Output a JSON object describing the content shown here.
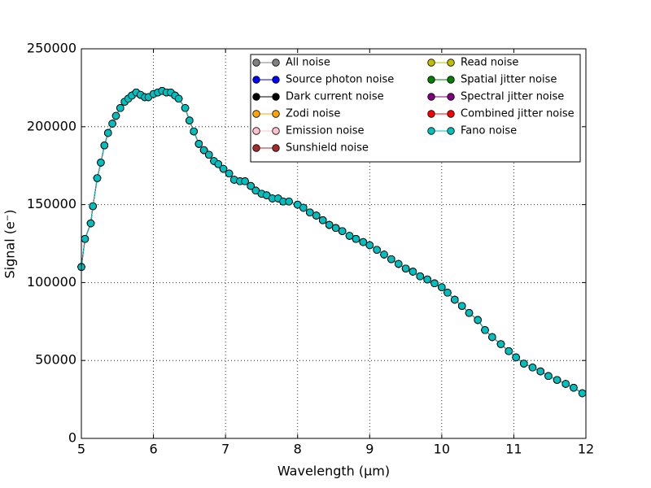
{
  "chart_data": {
    "type": "line",
    "xlabel": "Wavelength (μm)",
    "ylabel": "Signal (e⁻)",
    "xlim": [
      5,
      12
    ],
    "xticks": [
      5,
      6,
      7,
      8,
      9,
      10,
      11,
      12
    ],
    "ylim": [
      0,
      250000
    ],
    "yticks": [
      0,
      50000,
      100000,
      150000,
      200000,
      250000
    ],
    "grid": true,
    "legend": "upper right",
    "legend_columns": 2,
    "x": [
      5.0,
      5.05,
      5.13,
      5.16,
      5.22,
      5.27,
      5.32,
      5.37,
      5.43,
      5.48,
      5.54,
      5.6,
      5.65,
      5.7,
      5.76,
      5.82,
      5.88,
      5.93,
      6.0,
      6.06,
      6.12,
      6.18,
      6.24,
      6.3,
      6.35,
      6.44,
      6.5,
      6.56,
      6.63,
      6.7,
      6.77,
      6.84,
      6.9,
      6.97,
      7.05,
      7.12,
      7.2,
      7.27,
      7.35,
      7.42,
      7.5,
      7.57,
      7.65,
      7.73,
      7.8,
      7.88,
      8.0,
      8.08,
      8.17,
      8.26,
      8.35,
      8.44,
      8.53,
      8.62,
      8.72,
      8.81,
      8.91,
      9.0,
      9.1,
      9.2,
      9.3,
      9.4,
      9.5,
      9.6,
      9.7,
      9.8,
      9.9,
      10.0,
      10.08,
      10.18,
      10.28,
      10.38,
      10.5,
      10.6,
      10.7,
      10.82,
      10.93,
      11.03,
      11.14,
      11.26,
      11.37,
      11.48,
      11.6,
      11.72,
      11.83,
      11.95
    ],
    "series": [
      {
        "name": "All noise",
        "color": "#808080",
        "values": [
          110000,
          128000,
          138000,
          149000,
          167000,
          177000,
          188000,
          196000,
          202000,
          207000,
          212000,
          216000,
          218000,
          220000,
          222000,
          220500,
          219000,
          219000,
          221000,
          222000,
          223000,
          222000,
          222000,
          220000,
          218000,
          212000,
          204000,
          197000,
          189000,
          185000,
          182000,
          178000,
          176000,
          173000,
          170000,
          166000,
          165000,
          165000,
          162000,
          159000,
          157000,
          156000,
          154000,
          154000,
          152000,
          152000,
          150000,
          148000,
          145000,
          143000,
          140000,
          137000,
          135000,
          133000,
          130000,
          128000,
          126000,
          124000,
          121000,
          118000,
          115000,
          112000,
          109000,
          107000,
          104000,
          102000,
          99500,
          97000,
          93500,
          89000,
          85000,
          80500,
          76000,
          69500,
          65000,
          60500,
          56000,
          52000,
          48000,
          45500,
          43000,
          40000,
          37500,
          35000,
          32500,
          29000
        ]
      },
      {
        "name": "Source photon noise",
        "color": "#0000ff",
        "values": [
          110000,
          128000,
          138000,
          149000,
          167000,
          177000,
          188000,
          196000,
          202000,
          207000,
          212000,
          216000,
          218000,
          220000,
          222000,
          220500,
          219000,
          219000,
          221000,
          222000,
          223000,
          222000,
          222000,
          220000,
          218000,
          212000,
          204000,
          197000,
          189000,
          185000,
          182000,
          178000,
          176000,
          173000,
          170000,
          166000,
          165000,
          165000,
          162000,
          159000,
          157000,
          156000,
          154000,
          154000,
          152000,
          152000,
          150000,
          148000,
          145000,
          143000,
          140000,
          137000,
          135000,
          133000,
          130000,
          128000,
          126000,
          124000,
          121000,
          118000,
          115000,
          112000,
          109000,
          107000,
          104000,
          102000,
          99500,
          97000,
          93500,
          89000,
          85000,
          80500,
          76000,
          69500,
          65000,
          60500,
          56000,
          52000,
          48000,
          45500,
          43000,
          40000,
          37500,
          35000,
          32500,
          29000
        ]
      },
      {
        "name": "Dark current noise",
        "color": "#000000",
        "values": [
          110000,
          128000,
          138000,
          149000,
          167000,
          177000,
          188000,
          196000,
          202000,
          207000,
          212000,
          216000,
          218000,
          220000,
          222000,
          220500,
          219000,
          219000,
          221000,
          222000,
          223000,
          222000,
          222000,
          220000,
          218000,
          212000,
          204000,
          197000,
          189000,
          185000,
          182000,
          178000,
          176000,
          173000,
          170000,
          166000,
          165000,
          165000,
          162000,
          159000,
          157000,
          156000,
          154000,
          154000,
          152000,
          152000,
          150000,
          148000,
          145000,
          143000,
          140000,
          137000,
          135000,
          133000,
          130000,
          128000,
          126000,
          124000,
          121000,
          118000,
          115000,
          112000,
          109000,
          107000,
          104000,
          102000,
          99500,
          97000,
          93500,
          89000,
          85000,
          80500,
          76000,
          69500,
          65000,
          60500,
          56000,
          52000,
          48000,
          45500,
          43000,
          40000,
          37500,
          35000,
          32500,
          29000
        ]
      },
      {
        "name": "Zodi noise",
        "color": "#ffa500",
        "values": [
          110000,
          128000,
          138000,
          149000,
          167000,
          177000,
          188000,
          196000,
          202000,
          207000,
          212000,
          216000,
          218000,
          220000,
          222000,
          220500,
          219000,
          219000,
          221000,
          222000,
          223000,
          222000,
          222000,
          220000,
          218000,
          212000,
          204000,
          197000,
          189000,
          185000,
          182000,
          178000,
          176000,
          173000,
          170000,
          166000,
          165000,
          165000,
          162000,
          159000,
          157000,
          156000,
          154000,
          154000,
          152000,
          152000,
          150000,
          148000,
          145000,
          143000,
          140000,
          137000,
          135000,
          133000,
          130000,
          128000,
          126000,
          124000,
          121000,
          118000,
          115000,
          112000,
          109000,
          107000,
          104000,
          102000,
          99500,
          97000,
          93500,
          89000,
          85000,
          80500,
          76000,
          69500,
          65000,
          60500,
          56000,
          52000,
          48000,
          45500,
          43000,
          40000,
          37500,
          35000,
          32500,
          29000
        ]
      },
      {
        "name": "Emission noise",
        "color": "#ffc0cb",
        "values": [
          110000,
          128000,
          138000,
          149000,
          167000,
          177000,
          188000,
          196000,
          202000,
          207000,
          212000,
          216000,
          218000,
          220000,
          222000,
          220500,
          219000,
          219000,
          221000,
          222000,
          223000,
          222000,
          222000,
          220000,
          218000,
          212000,
          204000,
          197000,
          189000,
          185000,
          182000,
          178000,
          176000,
          173000,
          170000,
          166000,
          165000,
          165000,
          162000,
          159000,
          157000,
          156000,
          154000,
          154000,
          152000,
          152000,
          150000,
          148000,
          145000,
          143000,
          140000,
          137000,
          135000,
          133000,
          130000,
          128000,
          126000,
          124000,
          121000,
          118000,
          115000,
          112000,
          109000,
          107000,
          104000,
          102000,
          99500,
          97000,
          93500,
          89000,
          85000,
          80500,
          76000,
          69500,
          65000,
          60500,
          56000,
          52000,
          48000,
          45500,
          43000,
          40000,
          37500,
          35000,
          32500,
          29000
        ]
      },
      {
        "name": "Sunshield noise",
        "color": "#a52a2a",
        "values": [
          110000,
          128000,
          138000,
          149000,
          167000,
          177000,
          188000,
          196000,
          202000,
          207000,
          212000,
          216000,
          218000,
          220000,
          222000,
          220500,
          219000,
          219000,
          221000,
          222000,
          223000,
          222000,
          222000,
          220000,
          218000,
          212000,
          204000,
          197000,
          189000,
          185000,
          182000,
          178000,
          176000,
          173000,
          170000,
          166000,
          165000,
          165000,
          162000,
          159000,
          157000,
          156000,
          154000,
          154000,
          152000,
          152000,
          150000,
          148000,
          145000,
          143000,
          140000,
          137000,
          135000,
          133000,
          130000,
          128000,
          126000,
          124000,
          121000,
          118000,
          115000,
          112000,
          109000,
          107000,
          104000,
          102000,
          99500,
          97000,
          93500,
          89000,
          85000,
          80500,
          76000,
          69500,
          65000,
          60500,
          56000,
          52000,
          48000,
          45500,
          43000,
          40000,
          37500,
          35000,
          32500,
          29000
        ]
      },
      {
        "name": "Read noise",
        "color": "#bfbf00",
        "values": [
          110000,
          128000,
          138000,
          149000,
          167000,
          177000,
          188000,
          196000,
          202000,
          207000,
          212000,
          216000,
          218000,
          220000,
          222000,
          220500,
          219000,
          219000,
          221000,
          222000,
          223000,
          222000,
          222000,
          220000,
          218000,
          212000,
          204000,
          197000,
          189000,
          185000,
          182000,
          178000,
          176000,
          173000,
          170000,
          166000,
          165000,
          165000,
          162000,
          159000,
          157000,
          156000,
          154000,
          154000,
          152000,
          152000,
          150000,
          148000,
          145000,
          143000,
          140000,
          137000,
          135000,
          133000,
          130000,
          128000,
          126000,
          124000,
          121000,
          118000,
          115000,
          112000,
          109000,
          107000,
          104000,
          102000,
          99500,
          97000,
          93500,
          89000,
          85000,
          80500,
          76000,
          69500,
          65000,
          60500,
          56000,
          52000,
          48000,
          45500,
          43000,
          40000,
          37500,
          35000,
          32500,
          29000
        ]
      },
      {
        "name": "Spatial jitter noise",
        "color": "#008000",
        "values": [
          110000,
          128000,
          138000,
          149000,
          167000,
          177000,
          188000,
          196000,
          202000,
          207000,
          212000,
          216000,
          218000,
          220000,
          222000,
          220500,
          219000,
          219000,
          221000,
          222000,
          223000,
          222000,
          222000,
          220000,
          218000,
          212000,
          204000,
          197000,
          189000,
          185000,
          182000,
          178000,
          176000,
          173000,
          170000,
          166000,
          165000,
          165000,
          162000,
          159000,
          157000,
          156000,
          154000,
          154000,
          152000,
          152000,
          150000,
          148000,
          145000,
          143000,
          140000,
          137000,
          135000,
          133000,
          130000,
          128000,
          126000,
          124000,
          121000,
          118000,
          115000,
          112000,
          109000,
          107000,
          104000,
          102000,
          99500,
          97000,
          93500,
          89000,
          85000,
          80500,
          76000,
          69500,
          65000,
          60500,
          56000,
          52000,
          48000,
          45500,
          43000,
          40000,
          37500,
          35000,
          32500,
          29000
        ]
      },
      {
        "name": "Spectral jitter noise",
        "color": "#800080",
        "values": [
          110000,
          128000,
          138000,
          149000,
          167000,
          177000,
          188000,
          196000,
          202000,
          207000,
          212000,
          216000,
          218000,
          220000,
          222000,
          220500,
          219000,
          219000,
          221000,
          222000,
          223000,
          222000,
          222000,
          220000,
          218000,
          212000,
          204000,
          197000,
          189000,
          185000,
          182000,
          178000,
          176000,
          173000,
          170000,
          166000,
          165000,
          165000,
          162000,
          159000,
          157000,
          156000,
          154000,
          154000,
          152000,
          152000,
          150000,
          148000,
          145000,
          143000,
          140000,
          137000,
          135000,
          133000,
          130000,
          128000,
          126000,
          124000,
          121000,
          118000,
          115000,
          112000,
          109000,
          107000,
          104000,
          102000,
          99500,
          97000,
          93500,
          89000,
          85000,
          80500,
          76000,
          69500,
          65000,
          60500,
          56000,
          52000,
          48000,
          45500,
          43000,
          40000,
          37500,
          35000,
          32500,
          29000
        ]
      },
      {
        "name": "Combined jitter noise",
        "color": "#ff0000",
        "values": [
          110000,
          128000,
          138000,
          149000,
          167000,
          177000,
          188000,
          196000,
          202000,
          207000,
          212000,
          216000,
          218000,
          220000,
          222000,
          220500,
          219000,
          219000,
          221000,
          222000,
          223000,
          222000,
          222000,
          220000,
          218000,
          212000,
          204000,
          197000,
          189000,
          185000,
          182000,
          178000,
          176000,
          173000,
          170000,
          166000,
          165000,
          165000,
          162000,
          159000,
          157000,
          156000,
          154000,
          154000,
          152000,
          152000,
          150000,
          148000,
          145000,
          143000,
          140000,
          137000,
          135000,
          133000,
          130000,
          128000,
          126000,
          124000,
          121000,
          118000,
          115000,
          112000,
          109000,
          107000,
          104000,
          102000,
          99500,
          97000,
          93500,
          89000,
          85000,
          80500,
          76000,
          69500,
          65000,
          60500,
          56000,
          52000,
          48000,
          45500,
          43000,
          40000,
          37500,
          35000,
          32500,
          29000
        ]
      },
      {
        "name": "Fano noise",
        "color": "#00bfbf",
        "values": [
          110000,
          128000,
          138000,
          149000,
          167000,
          177000,
          188000,
          196000,
          202000,
          207000,
          212000,
          216000,
          218000,
          220000,
          222000,
          220500,
          219000,
          219000,
          221000,
          222000,
          223000,
          222000,
          222000,
          220000,
          218000,
          212000,
          204000,
          197000,
          189000,
          185000,
          182000,
          178000,
          176000,
          173000,
          170000,
          166000,
          165000,
          165000,
          162000,
          159000,
          157000,
          156000,
          154000,
          154000,
          152000,
          152000,
          150000,
          148000,
          145000,
          143000,
          140000,
          137000,
          135000,
          133000,
          130000,
          128000,
          126000,
          124000,
          121000,
          118000,
          115000,
          112000,
          109000,
          107000,
          104000,
          102000,
          99500,
          97000,
          93500,
          89000,
          85000,
          80500,
          76000,
          69500,
          65000,
          60500,
          56000,
          52000,
          48000,
          45500,
          43000,
          40000,
          37500,
          35000,
          32500,
          29000
        ]
      }
    ]
  }
}
